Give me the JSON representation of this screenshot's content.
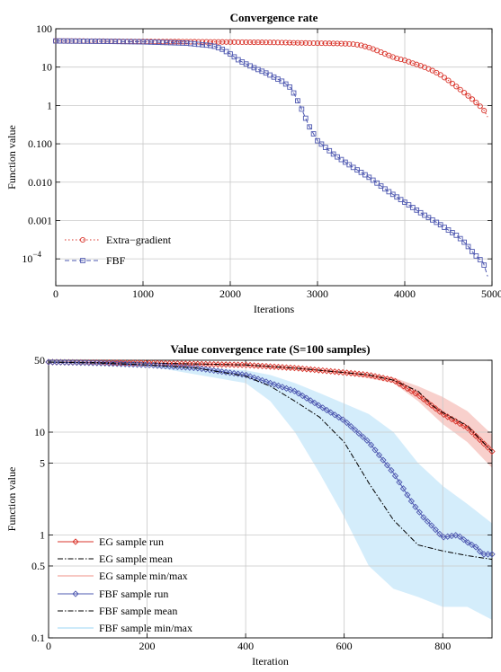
{
  "chart_data": [
    {
      "type": "line",
      "title": "Convergence rate",
      "xlabel": "Iterations",
      "ylabel": "Function value",
      "yscale": "log",
      "xlim": [
        0,
        5000
      ],
      "ylim": [
        2e-05,
        100
      ],
      "grid": true,
      "legend_position": "bottom-left",
      "xticks": [
        "0",
        "1000",
        "2000",
        "3000",
        "4000",
        "5000"
      ],
      "yticks": [
        {
          "v": 100,
          "label": "100"
        },
        {
          "v": 10,
          "label": "10"
        },
        {
          "v": 1,
          "label": "1"
        },
        {
          "v": 0.1,
          "label": "0.100"
        },
        {
          "v": 0.01,
          "label": "0.010"
        },
        {
          "v": 0.001,
          "label": "0.001"
        },
        {
          "v": 0.0001,
          "label": "10",
          "sup": "−4"
        }
      ],
      "series": [
        {
          "name": "Extra−gradient",
          "color": "#d9342b",
          "marker": "circle",
          "dash": "1.5,2.5",
          "x": [
            0,
            500,
            1000,
            1500,
            2000,
            2500,
            3000,
            3200,
            3400,
            3500,
            3600,
            3700,
            3800,
            3900,
            4000,
            4100,
            4200,
            4300,
            4400,
            4500,
            4600,
            4700,
            4800,
            4900,
            4950
          ],
          "y": [
            48,
            47.5,
            46.5,
            46,
            45,
            44,
            42,
            41.5,
            40,
            37,
            32,
            26,
            21,
            17,
            15,
            12.5,
            10.5,
            8.5,
            6.5,
            4.5,
            3,
            2,
            1.3,
            0.8,
            0.5
          ]
        },
        {
          "name": "FBF",
          "color": "#4e58b0",
          "marker": "square",
          "dash": "5,3",
          "x": [
            0,
            500,
            1000,
            1500,
            1800,
            1900,
            2000,
            2100,
            2200,
            2300,
            2400,
            2500,
            2600,
            2700,
            2800,
            2900,
            3000,
            3200,
            3400,
            3600,
            3800,
            4000,
            4200,
            4400,
            4600,
            4700,
            4800,
            4900,
            4950
          ],
          "y": [
            48,
            47,
            45.5,
            42,
            36,
            30,
            22,
            15,
            11.5,
            9,
            7.2,
            5.5,
            4.2,
            2.8,
            1,
            0.3,
            0.12,
            0.05,
            0.025,
            0.013,
            0.006,
            0.003,
            0.0015,
            0.0008,
            0.0004,
            0.00025,
            0.00013,
            8e-05,
            3.5e-05
          ]
        }
      ]
    },
    {
      "type": "line",
      "title": "Value convergence rate (S=100 samples)",
      "xlabel": "Iteration",
      "ylabel": "Function value",
      "yscale": "log",
      "xlim": [
        0,
        900
      ],
      "ylim": [
        0.1,
        50
      ],
      "grid": true,
      "legend_position": "bottom-left",
      "xticks": [
        "0",
        "200",
        "400",
        "600",
        "800"
      ],
      "yticks": [
        {
          "v": 50,
          "label": "50"
        },
        {
          "v": 10,
          "label": "10"
        },
        {
          "v": 5,
          "label": "5"
        },
        {
          "v": 1,
          "label": "1"
        },
        {
          "v": 0.5,
          "label": "0.5"
        },
        {
          "v": 0.1,
          "label": "0.1"
        }
      ],
      "series": [
        {
          "name": "EG sample run",
          "color": "#d9342b",
          "kind": "line",
          "marker": "diamond",
          "x": [
            0,
            100,
            200,
            300,
            400,
            500,
            600,
            650,
            700,
            750,
            800,
            850,
            900
          ],
          "y": [
            48,
            47.5,
            47,
            46,
            45,
            42,
            38,
            36,
            32,
            23,
            15,
            11,
            6.5
          ]
        },
        {
          "name": "EG sample mean",
          "color": "#000000",
          "kind": "mean",
          "x": [
            0,
            100,
            200,
            300,
            400,
            500,
            600,
            650,
            700,
            750,
            780,
            800,
            850,
            900
          ],
          "y": [
            48,
            47.5,
            47,
            46,
            45,
            42,
            38,
            36,
            32,
            25,
            18,
            15.5,
            11.5,
            6.5
          ]
        },
        {
          "name": "EG sample min/max",
          "color": "#f7c8c3",
          "kind": "band",
          "x": [
            0,
            200,
            400,
            600,
            700,
            750,
            800,
            850,
            900
          ],
          "ymin": [
            47,
            46,
            44,
            37,
            30,
            20,
            12,
            8,
            4.5
          ],
          "ymax": [
            49,
            48,
            46,
            39,
            34,
            28,
            22,
            16,
            9.5
          ]
        },
        {
          "name": "FBF sample run",
          "color": "#4e58b0",
          "kind": "line",
          "marker": "diamond",
          "x": [
            0,
            100,
            200,
            300,
            400,
            450,
            500,
            550,
            600,
            650,
            700,
            740,
            760,
            780,
            800,
            830,
            850,
            870,
            880,
            900
          ],
          "y": [
            48,
            47,
            45,
            42,
            36,
            30,
            25,
            18,
            13,
            8,
            4,
            2,
            1.5,
            1.2,
            0.95,
            1,
            0.85,
            0.75,
            0.65,
            0.65
          ]
        },
        {
          "name": "FBF sample mean",
          "color": "#000000",
          "kind": "mean",
          "x": [
            0,
            100,
            200,
            300,
            400,
            450,
            500,
            550,
            600,
            650,
            700,
            750,
            800,
            850,
            900
          ],
          "y": [
            48,
            47,
            45,
            42,
            35,
            28,
            20,
            14,
            8,
            3.2,
            1.4,
            0.8,
            0.7,
            0.63,
            0.58
          ]
        },
        {
          "name": "FBF sample min/max",
          "color": "#cdeafa",
          "kind": "band",
          "x": [
            0,
            200,
            400,
            450,
            500,
            550,
            600,
            650,
            700,
            750,
            800,
            850,
            900
          ],
          "ymin": [
            47,
            44,
            30,
            20,
            10,
            4,
            1.5,
            0.5,
            0.3,
            0.25,
            0.2,
            0.2,
            0.15
          ],
          "ymax": [
            49,
            46,
            40,
            36,
            30,
            24,
            19,
            15,
            10,
            5,
            3,
            2,
            1.3
          ]
        }
      ]
    }
  ]
}
